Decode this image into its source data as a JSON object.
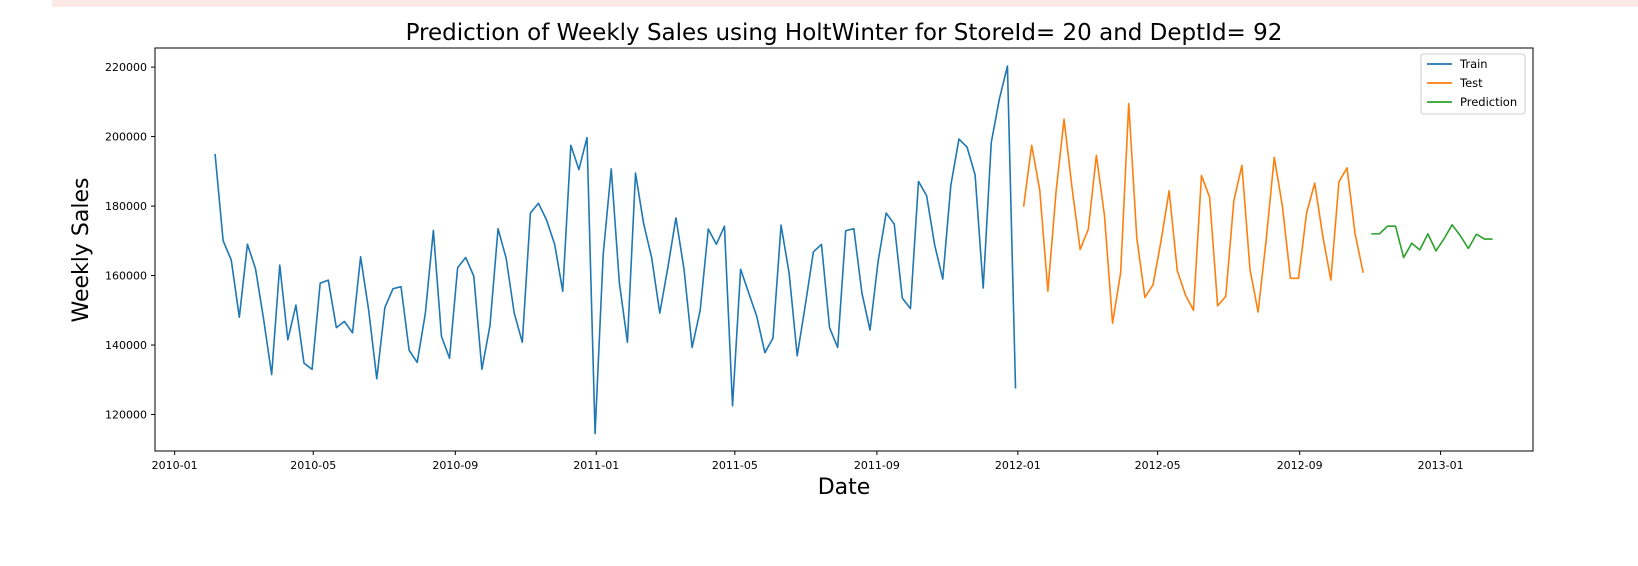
{
  "chart_data": {
    "type": "line",
    "title": "Prediction of Weekly Sales using HoltWinter for StoreId= 20 and DeptId= 92",
    "xlabel": "Date",
    "ylabel": "Weekly Sales",
    "xlim": [
      "2009-12-15",
      "2013-03-22"
    ],
    "ylim": [
      109500,
      225500
    ],
    "x_ticks": [
      "2010-01-01",
      "2010-05-01",
      "2010-09-01",
      "2011-01-01",
      "2011-05-01",
      "2011-09-01",
      "2012-01-01",
      "2012-05-01",
      "2012-09-01",
      "2013-01-01"
    ],
    "x_tick_labels": [
      "2010-01",
      "2010-05",
      "2010-09",
      "2011-01",
      "2011-05",
      "2011-09",
      "2012-01",
      "2012-05",
      "2012-09",
      "2013-01"
    ],
    "y_ticks": [
      120000,
      140000,
      160000,
      180000,
      200000,
      220000
    ],
    "y_tick_labels": [
      "120000",
      "140000",
      "160000",
      "180000",
      "200000",
      "220000"
    ],
    "grid": false,
    "legend_position": "top-right",
    "colors": {
      "Train": "#1f77b4",
      "Test": "#ff7f0e",
      "Prediction": "#2ca02c"
    },
    "series": [
      {
        "name": "Train",
        "x": [
          "2010-02-05",
          "2010-02-12",
          "2010-02-19",
          "2010-02-26",
          "2010-03-05",
          "2010-03-12",
          "2010-03-19",
          "2010-03-26",
          "2010-04-02",
          "2010-04-09",
          "2010-04-16",
          "2010-04-23",
          "2010-04-30",
          "2010-05-07",
          "2010-05-14",
          "2010-05-21",
          "2010-05-28",
          "2010-06-04",
          "2010-06-11",
          "2010-06-18",
          "2010-06-25",
          "2010-07-02",
          "2010-07-09",
          "2010-07-16",
          "2010-07-23",
          "2010-07-30",
          "2010-08-06",
          "2010-08-13",
          "2010-08-20",
          "2010-08-27",
          "2010-09-03",
          "2010-09-10",
          "2010-09-17",
          "2010-09-24",
          "2010-10-01",
          "2010-10-08",
          "2010-10-15",
          "2010-10-22",
          "2010-10-29",
          "2010-11-05",
          "2010-11-12",
          "2010-11-19",
          "2010-11-26",
          "2010-12-03",
          "2010-12-10",
          "2010-12-17",
          "2010-12-24",
          "2010-12-31",
          "2011-01-07",
          "2011-01-14",
          "2011-01-21",
          "2011-01-28",
          "2011-02-04",
          "2011-02-11",
          "2011-02-18",
          "2011-02-25",
          "2011-03-04",
          "2011-03-11",
          "2011-03-18",
          "2011-03-25",
          "2011-04-01",
          "2011-04-08",
          "2011-04-15",
          "2011-04-22",
          "2011-04-29",
          "2011-05-06",
          "2011-05-13",
          "2011-05-20",
          "2011-05-27",
          "2011-06-03",
          "2011-06-10",
          "2011-06-17",
          "2011-06-24",
          "2011-07-01",
          "2011-07-08",
          "2011-07-15",
          "2011-07-22",
          "2011-07-29",
          "2011-08-05",
          "2011-08-12",
          "2011-08-19",
          "2011-08-26",
          "2011-09-02",
          "2011-09-09",
          "2011-09-16",
          "2011-09-23",
          "2011-09-30",
          "2011-10-07",
          "2011-10-14",
          "2011-10-21",
          "2011-10-28",
          "2011-11-04",
          "2011-11-11",
          "2011-11-18",
          "2011-11-25",
          "2011-12-02",
          "2011-12-09",
          "2011-12-16",
          "2011-12-23",
          "2011-12-30"
        ],
        "values": [
          195000,
          170000,
          164500,
          148000,
          169000,
          162000,
          147500,
          131500,
          163000,
          141500,
          151500,
          134800,
          133000,
          157800,
          158700,
          145000,
          146800,
          143500,
          165400,
          150000,
          130300,
          150800,
          156200,
          156800,
          138500,
          135000,
          149000,
          173000,
          142500,
          136200,
          162300,
          165200,
          159800,
          133000,
          145600,
          173500,
          165000,
          149200,
          140800,
          178000,
          180800,
          176000,
          169000,
          155500,
          197500,
          190500,
          199700,
          114500,
          166000,
          190700,
          158000,
          140800,
          189500,
          175000,
          165100,
          149200,
          162300,
          176600,
          161800,
          139300,
          150000,
          173400,
          169000,
          174200,
          122500,
          161800,
          155000,
          148200,
          137800,
          142000,
          174500,
          160700,
          136900,
          151500,
          166800,
          169000,
          145000,
          139300,
          172900,
          173500,
          155000,
          144300,
          164000,
          178000,
          174800,
          153500,
          150500,
          187100,
          183000,
          168800,
          159000,
          186000,
          199300,
          197000,
          189000,
          156400,
          198300,
          210800,
          220300,
          127500
        ]
      },
      {
        "name": "Test",
        "x": [
          "2012-01-06",
          "2012-01-13",
          "2012-01-20",
          "2012-01-27",
          "2012-02-03",
          "2012-02-10",
          "2012-02-17",
          "2012-02-24",
          "2012-03-02",
          "2012-03-09",
          "2012-03-16",
          "2012-03-23",
          "2012-03-30",
          "2012-04-06",
          "2012-04-13",
          "2012-04-20",
          "2012-04-27",
          "2012-05-04",
          "2012-05-11",
          "2012-05-18",
          "2012-05-25",
          "2012-06-01",
          "2012-06-08",
          "2012-06-15",
          "2012-06-22",
          "2012-06-29",
          "2012-07-06",
          "2012-07-13",
          "2012-07-20",
          "2012-07-27",
          "2012-08-03",
          "2012-08-10",
          "2012-08-17",
          "2012-08-24",
          "2012-08-31",
          "2012-09-07",
          "2012-09-14",
          "2012-09-21",
          "2012-09-28",
          "2012-10-05",
          "2012-10-12",
          "2012-10-19",
          "2012-10-26"
        ],
        "values": [
          179800,
          197500,
          184500,
          155500,
          183800,
          205000,
          185000,
          167500,
          173300,
          194600,
          177300,
          146300,
          160800,
          209500,
          170800,
          153700,
          157300,
          170000,
          184400,
          161500,
          154500,
          150000,
          188800,
          182600,
          151300,
          154000,
          181500,
          191700,
          161700,
          149500,
          170300,
          194000,
          180100,
          159200,
          159200,
          178000,
          186600,
          171400,
          158700,
          187000,
          191000,
          172000,
          160800
        ]
      },
      {
        "name": "Prediction",
        "x": [
          "2012-11-02",
          "2012-11-09",
          "2012-11-16",
          "2012-11-23",
          "2012-11-30",
          "2012-12-07",
          "2012-12-14",
          "2012-12-21",
          "2012-12-28",
          "2013-01-04",
          "2013-01-11",
          "2013-01-18",
          "2013-01-25",
          "2013-02-01",
          "2013-02-08",
          "2013-02-15"
        ],
        "values": [
          172000,
          172000,
          174200,
          174200,
          165200,
          169300,
          167400,
          172000,
          167100,
          170600,
          174600,
          171500,
          167800,
          171900,
          170500,
          170500
        ]
      }
    ]
  }
}
